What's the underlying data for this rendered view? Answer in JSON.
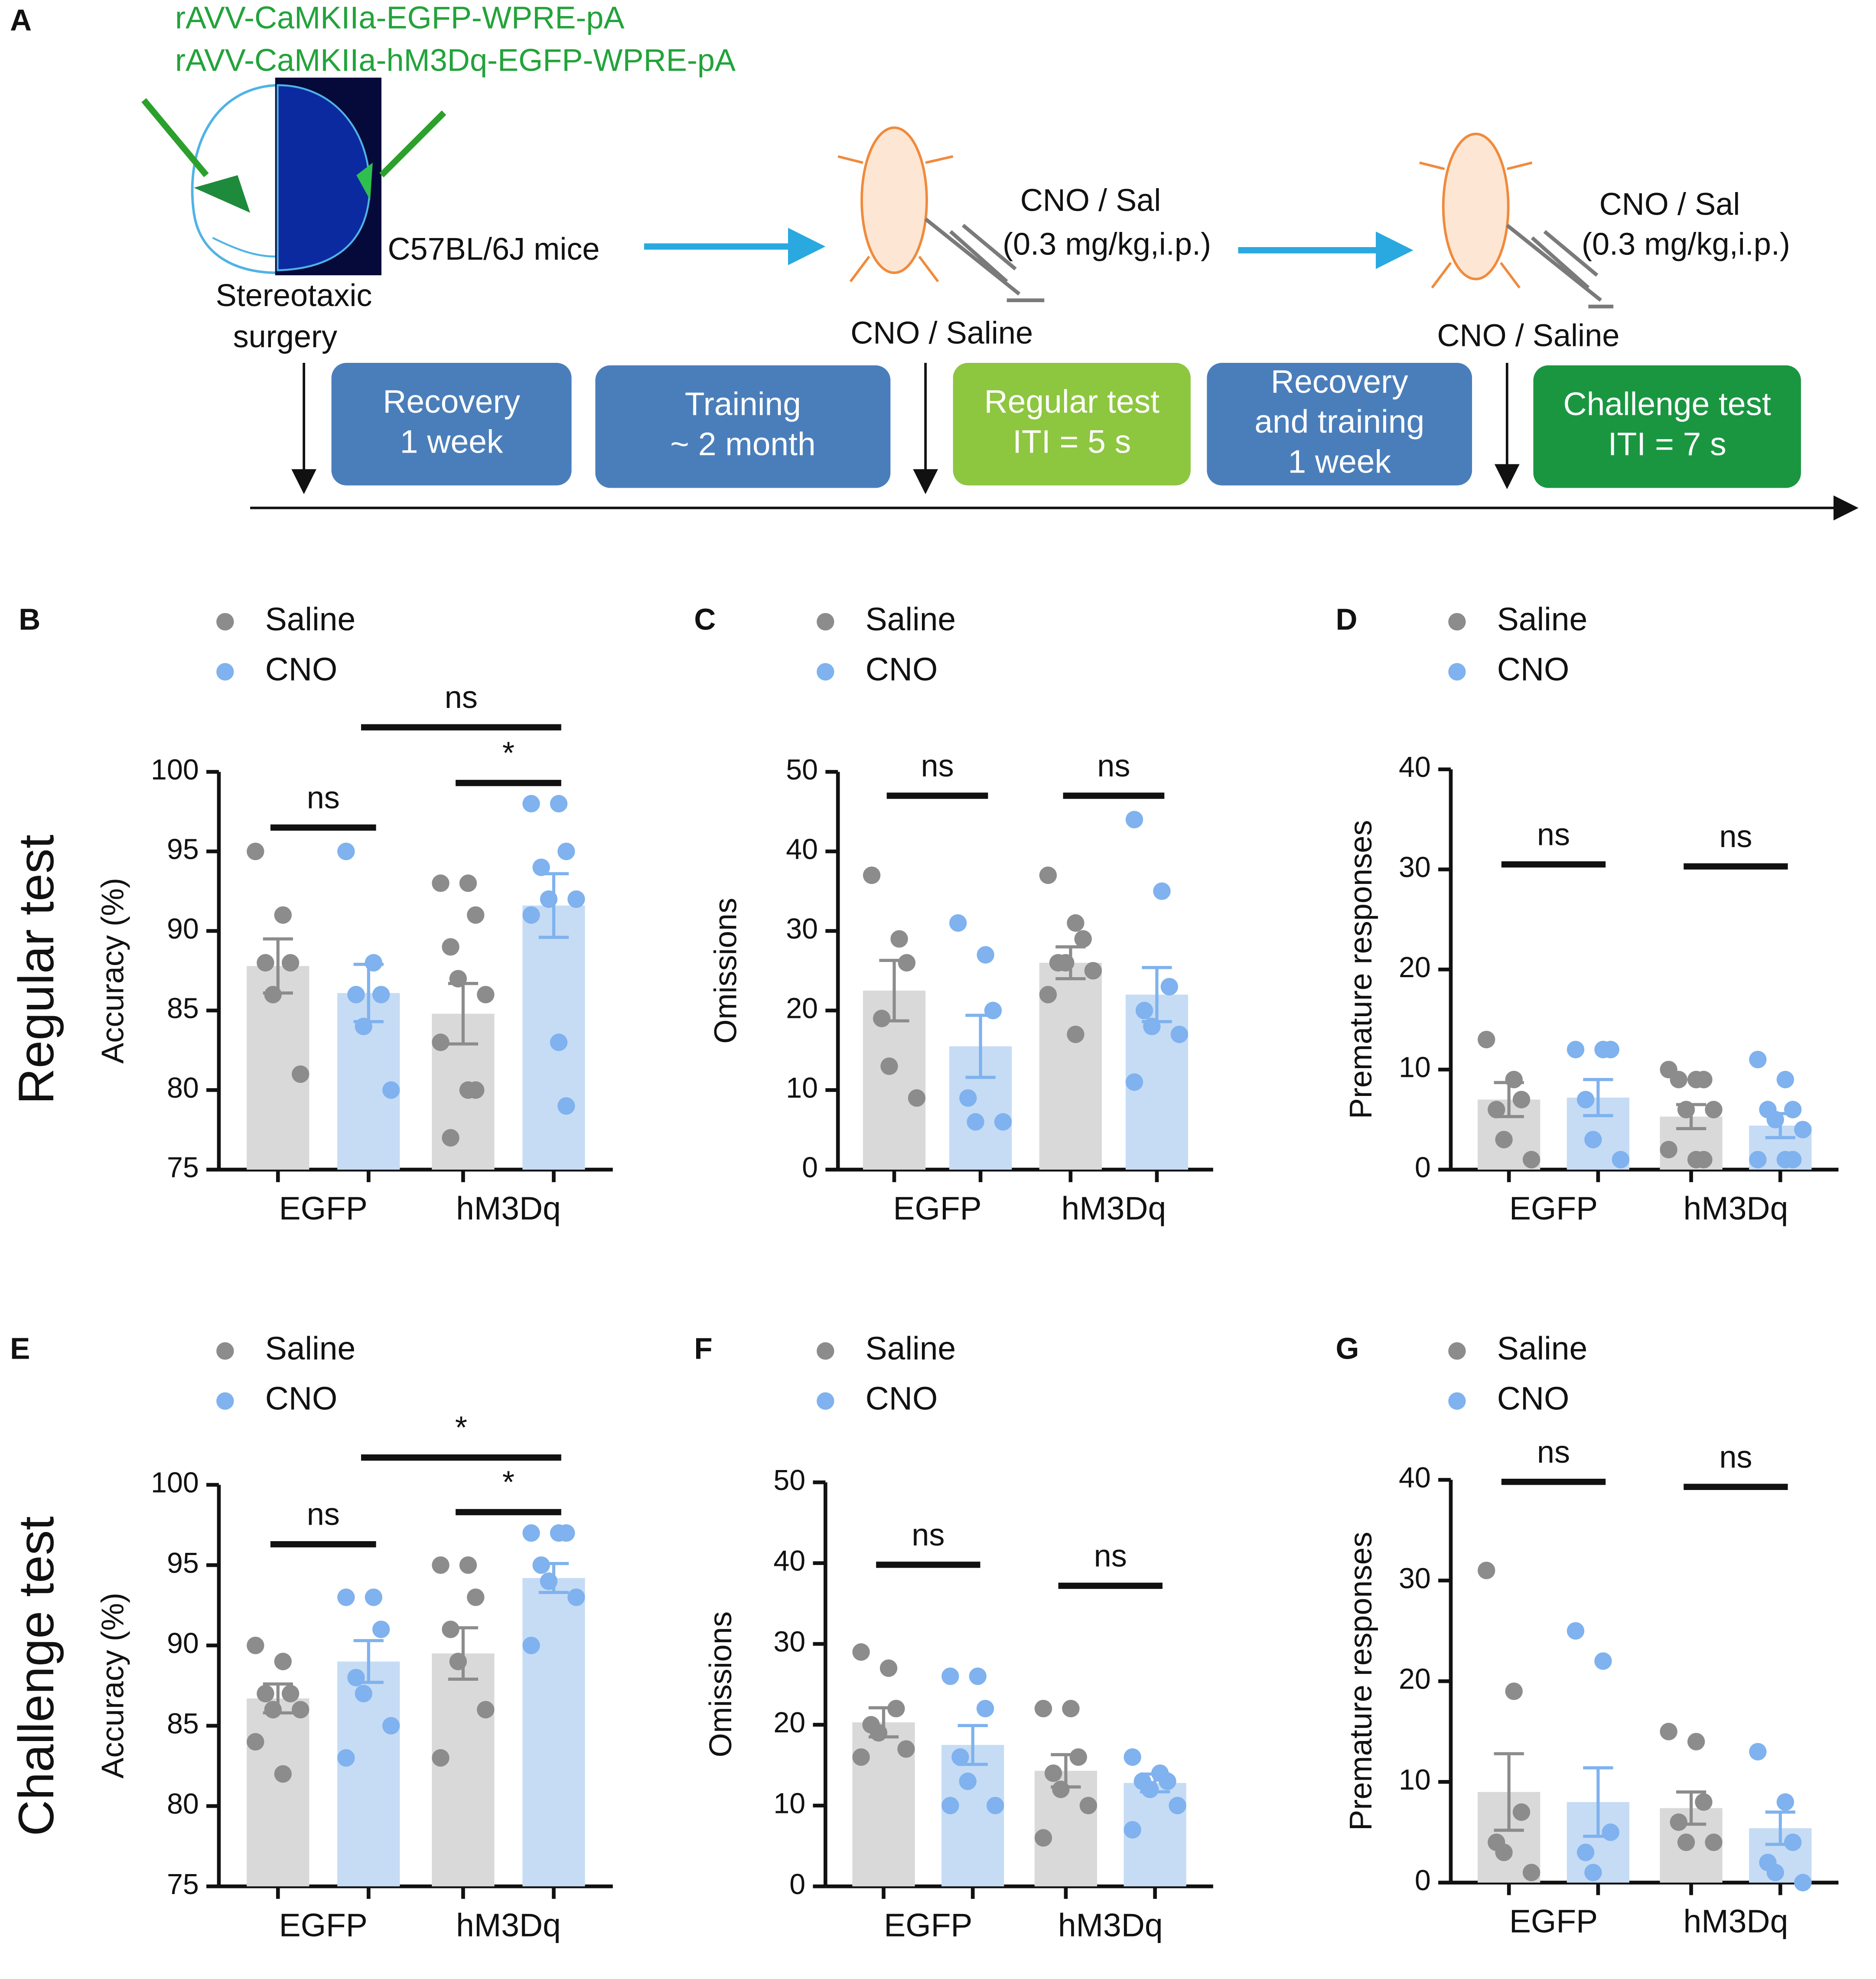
{
  "panel_a": {
    "label": "A",
    "constructs": [
      "rAVV-CaMKIIa-EGFP-WPRE-pA",
      "rAVV-CaMKIIa-hM3Dq-EGFP-WPRE-pA"
    ],
    "surgery": [
      "Stereotaxic",
      "surgery"
    ],
    "mice": "C57BL/6J mice",
    "injections": [
      {
        "drug": "CNO / Sal",
        "dose": "(0.3 mg/kg,i.p.)",
        "label": "CNO / Saline"
      },
      {
        "drug": "CNO / Sal",
        "dose": "(0.3 mg/kg,i.p.)",
        "label": "CNO / Saline"
      }
    ],
    "stages": [
      [
        "Recovery",
        "1 week"
      ],
      [
        "Training",
        "~ 2 month"
      ],
      [
        "Regular test",
        "ITI = 5 s"
      ],
      [
        "Recovery",
        "and training",
        "1 week"
      ],
      [
        "Challenge test",
        "ITI = 7 s"
      ]
    ]
  },
  "row_labels": [
    "Regular test",
    "Challenge test"
  ],
  "chart_data": [
    {
      "type": "bar",
      "panel": "B",
      "ylabel": "Accuracy (%)",
      "categories": [
        "EGFP",
        "hM3Dq"
      ],
      "series": [
        {
          "name": "Saline",
          "color": "#8c8c8c",
          "bar_color": "#d9d9d9",
          "values": [
            87.8,
            84.8
          ],
          "errors": [
            1.7,
            1.9
          ],
          "points": [
            [
              95,
              91,
              88,
              88,
              86,
              81
            ],
            [
              93,
              93,
              91,
              89,
              87,
              86,
              83,
              80,
              80,
              77
            ]
          ]
        },
        {
          "name": "CNO",
          "color": "#7fb2ee",
          "bar_color": "#c6dcf5",
          "values": [
            86.1,
            91.6
          ],
          "errors": [
            1.8,
            2.0
          ],
          "points": [
            [
              95,
              88,
              86,
              86,
              84,
              80
            ],
            [
              98,
              98,
              95,
              94,
              92,
              92,
              91,
              83,
              79
            ]
          ]
        }
      ],
      "ylim": [
        75,
        100
      ],
      "yticks": [
        75,
        80,
        85,
        90,
        95,
        100
      ],
      "comparisons": [
        "ns",
        "*",
        "ns"
      ]
    },
    {
      "type": "bar",
      "panel": "C",
      "ylabel": "Omissions",
      "categories": [
        "EGFP",
        "hM3Dq"
      ],
      "series": [
        {
          "name": "Saline",
          "color": "#8c8c8c",
          "bar_color": "#d9d9d9",
          "values": [
            22.5,
            26
          ],
          "errors": [
            3.8,
            2
          ],
          "points": [
            [
              37,
              29,
              26,
              19,
              13,
              9
            ],
            [
              37,
              31,
              29,
              26,
              26,
              25,
              22,
              17
            ]
          ]
        },
        {
          "name": "CNO",
          "color": "#7fb2ee",
          "bar_color": "#c6dcf5",
          "values": [
            15.5,
            22
          ],
          "errors": [
            3.9,
            3.4
          ],
          "points": [
            [
              31,
              27,
              20,
              9,
              6,
              6
            ],
            [
              44,
              35,
              23,
              20,
              18,
              17,
              11
            ]
          ]
        }
      ],
      "ylim": [
        0,
        50
      ],
      "yticks": [
        0,
        10,
        20,
        30,
        40,
        50
      ],
      "comparisons": [
        "ns",
        "ns"
      ]
    },
    {
      "type": "bar",
      "panel": "D",
      "ylabel": "Premature responses",
      "categories": [
        "EGFP",
        "hM3Dq"
      ],
      "series": [
        {
          "name": "Saline",
          "color": "#8c8c8c",
          "bar_color": "#d9d9d9",
          "values": [
            7,
            5.3
          ],
          "errors": [
            1.7,
            1.2
          ],
          "points": [
            [
              13,
              9,
              7,
              6,
              3,
              1
            ],
            [
              10,
              9,
              9,
              9,
              6,
              6,
              2,
              1,
              1
            ]
          ]
        },
        {
          "name": "CNO",
          "color": "#7fb2ee",
          "bar_color": "#c6dcf5",
          "values": [
            7.2,
            4.4
          ],
          "errors": [
            1.8,
            1.2
          ],
          "points": [
            [
              12,
              12,
              12,
              7,
              3,
              1
            ],
            [
              11,
              9,
              6,
              6,
              5,
              4,
              1,
              1,
              1
            ]
          ]
        }
      ],
      "ylim": [
        0,
        40
      ],
      "yticks": [
        0,
        10,
        20,
        30,
        40
      ],
      "comparisons": [
        "ns",
        "ns"
      ]
    },
    {
      "type": "bar",
      "panel": "E",
      "ylabel": "Accuracy (%)",
      "categories": [
        "EGFP",
        "hM3Dq"
      ],
      "series": [
        {
          "name": "Saline",
          "color": "#8c8c8c",
          "bar_color": "#d9d9d9",
          "values": [
            86.7,
            89.5
          ],
          "errors": [
            0.9,
            1.6
          ],
          "points": [
            [
              90,
              89,
              87,
              87,
              86,
              86,
              84,
              82
            ],
            [
              95,
              95,
              93,
              91,
              89,
              86,
              83
            ]
          ]
        },
        {
          "name": "CNO",
          "color": "#7fb2ee",
          "bar_color": "#c6dcf5",
          "values": [
            89,
            94.2
          ],
          "errors": [
            1.3,
            0.9
          ],
          "points": [
            [
              93,
              93,
              91,
              88,
              87,
              85,
              83
            ],
            [
              97,
              97,
              97,
              95,
              94,
              93,
              90
            ]
          ]
        }
      ],
      "ylim": [
        75,
        100
      ],
      "yticks": [
        75,
        80,
        85,
        90,
        95,
        100
      ],
      "comparisons": [
        "ns",
        "*",
        "*"
      ]
    },
    {
      "type": "bar",
      "panel": "F",
      "ylabel": "Omissions",
      "categories": [
        "EGFP",
        "hM3Dq"
      ],
      "series": [
        {
          "name": "Saline",
          "color": "#8c8c8c",
          "bar_color": "#d9d9d9",
          "values": [
            20.3,
            14.3
          ],
          "errors": [
            1.8,
            2
          ],
          "points": [
            [
              29,
              27,
              22,
              20,
              19,
              17,
              16
            ],
            [
              22,
              22,
              16,
              14,
              12,
              10,
              6
            ]
          ]
        },
        {
          "name": "CNO",
          "color": "#7fb2ee",
          "bar_color": "#c6dcf5",
          "values": [
            17.5,
            12.8
          ],
          "errors": [
            2.4,
            1.1
          ],
          "points": [
            [
              26,
              26,
              22,
              16,
              13,
              10,
              10
            ],
            [
              16,
              14,
              13,
              13,
              12,
              10,
              7
            ]
          ]
        }
      ],
      "ylim": [
        0,
        50
      ],
      "yticks": [
        0,
        10,
        20,
        30,
        40,
        50
      ],
      "comparisons": [
        "ns",
        "ns"
      ]
    },
    {
      "type": "bar",
      "panel": "G",
      "ylabel": "Premature responses",
      "categories": [
        "EGFP",
        "hM3Dq"
      ],
      "series": [
        {
          "name": "Saline",
          "color": "#8c8c8c",
          "bar_color": "#d9d9d9",
          "values": [
            9,
            7.4
          ],
          "errors": [
            3.8,
            1.6
          ],
          "points": [
            [
              31,
              19,
              7,
              4,
              3,
              1
            ],
            [
              15,
              14,
              8,
              6,
              4,
              4
            ]
          ]
        },
        {
          "name": "CNO",
          "color": "#7fb2ee",
          "bar_color": "#c6dcf5",
          "values": [
            8,
            5.4
          ],
          "errors": [
            3.4,
            1.6
          ],
          "points": [
            [
              25,
              22,
              5,
              3,
              1
            ],
            [
              13,
              8,
              4,
              2,
              1,
              0
            ]
          ]
        }
      ],
      "ylim": [
        0,
        40
      ],
      "yticks": [
        0,
        10,
        20,
        30,
        40
      ],
      "comparisons": [
        "ns",
        "ns"
      ]
    }
  ]
}
